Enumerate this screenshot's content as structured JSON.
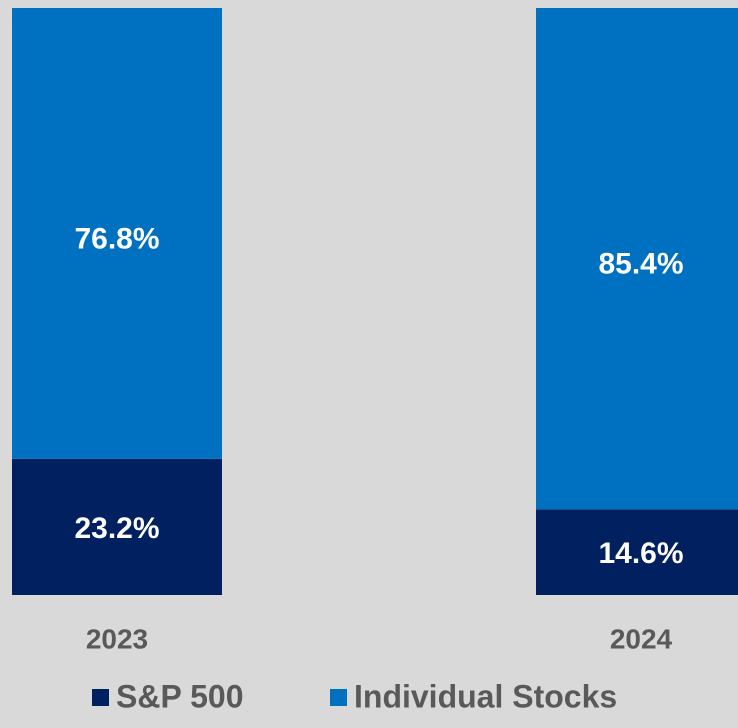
{
  "chart_data": {
    "type": "stacked_bar",
    "categories": [
      "2023",
      "2024"
    ],
    "series": [
      {
        "name": "S&P 500",
        "color": "#002060",
        "values": [
          23.2,
          14.6
        ],
        "value_labels": [
          "23.2%",
          "14.6%"
        ]
      },
      {
        "name": "Individual Stocks",
        "color": "#0070c0",
        "values": [
          76.8,
          85.4
        ],
        "value_labels": [
          "76.8%",
          "85.4%"
        ]
      }
    ],
    "ylim": [
      0,
      100
    ]
  }
}
